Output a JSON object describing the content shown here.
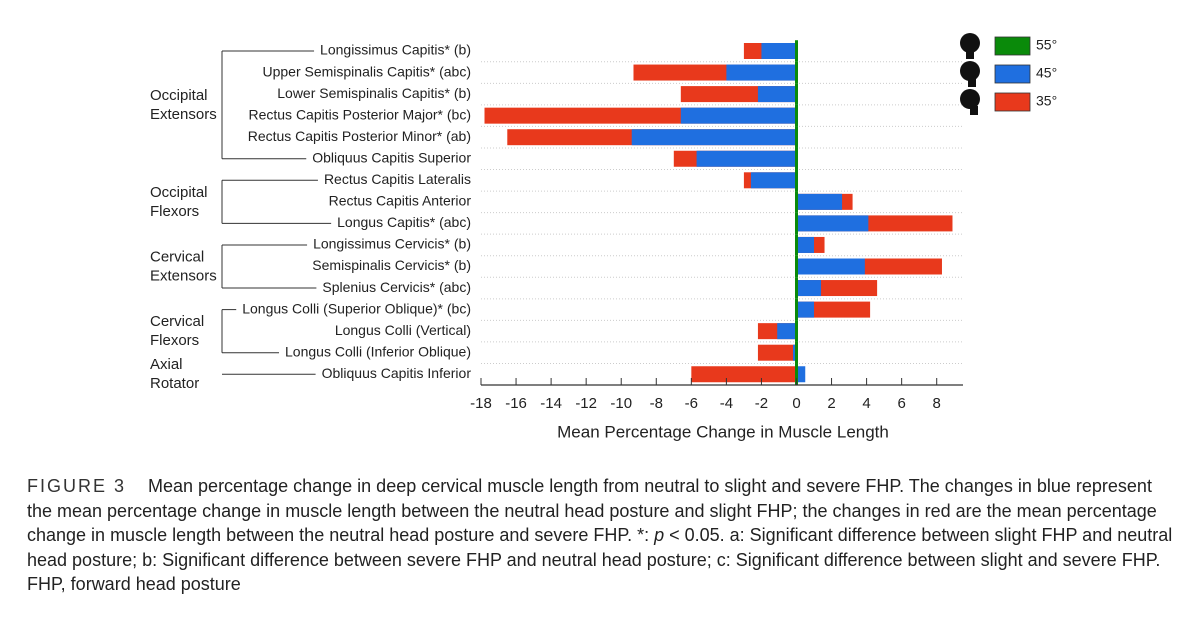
{
  "chart_data": {
    "type": "bar",
    "orientation": "horizontal",
    "x_label": "Mean Percentage Change in Muscle Length",
    "categories": [
      "Longissimus Capitis* (b)",
      "Upper Semispinalis Capitis* (abc)",
      "Lower Semispinalis Capitis* (b)",
      "Rectus Capitis Posterior Major* (bc)",
      "Rectus Capitis Posterior Minor* (ab)",
      "Obliquus Capitis Superior",
      "Rectus Capitis Lateralis",
      "Rectus Capitis Anterior",
      "Longus Capitis* (abc)",
      "Longissimus Cervicis* (b)",
      "Semispinalis Cervicis* (b)",
      "Splenius Cervicis* (abc)",
      "Longus Colli (Superior Oblique)* (bc)",
      "Longus Colli (Vertical)",
      "Longus Colli (Inferior Oblique)",
      "Obliquus Capitis Inferior"
    ],
    "groups": [
      {
        "label": [
          "Occipital",
          "Extensors"
        ],
        "rows": [
          0,
          5
        ]
      },
      {
        "label": [
          "Occipital",
          "Flexors"
        ],
        "rows": [
          6,
          8
        ]
      },
      {
        "label": [
          "Cervical",
          "Extensors"
        ],
        "rows": [
          9,
          11
        ]
      },
      {
        "label": [
          "Cervical",
          "Flexors"
        ],
        "rows": [
          12,
          14
        ]
      },
      {
        "label": [
          "Axial",
          "Rotator"
        ],
        "rows": [
          15,
          15
        ]
      }
    ],
    "series": [
      {
        "name": "55°",
        "color": "#0a8a0a",
        "values": [
          0,
          0,
          0,
          0,
          0,
          0,
          0,
          0,
          0,
          0,
          0,
          0,
          0,
          0,
          0,
          0
        ]
      },
      {
        "name": "45°",
        "color": "#1f6fe0",
        "values": [
          -2.0,
          -4.0,
          -2.2,
          -6.6,
          -9.4,
          -5.7,
          -2.6,
          2.6,
          4.1,
          1.0,
          3.9,
          1.4,
          1.0,
          -1.1,
          -0.2,
          0.5
        ]
      },
      {
        "name": "35°",
        "color": "#e8391c",
        "values": [
          -3.0,
          -9.3,
          -6.6,
          -17.8,
          -16.5,
          -7.0,
          -3.0,
          3.2,
          8.9,
          1.6,
          8.3,
          4.6,
          4.2,
          -2.2,
          -2.2,
          -6.0
        ]
      }
    ],
    "xlim": [
      -18,
      9.5
    ],
    "xticks": [
      -18,
      -16,
      -14,
      -12,
      -10,
      -8,
      -6,
      -4,
      -2,
      0,
      2,
      4,
      6,
      8
    ],
    "legend": "top-right"
  },
  "caption": {
    "label": "FIGURE 3",
    "text": [
      "Mean percentage change in deep cervical muscle length from neutral to slight and severe FHP. The changes in blue represent the mean percentage change in muscle length between the neutral head posture and slight FHP; the changes in red are the mean percentage change in muscle length between the neutral head posture and severe FHP. *: ",
      "p",
      " < 0.05. a: Significant difference between slight FHP and neutral head posture; b: Significant difference between severe FHP and neutral head posture; c: Significant difference between slight and severe FHP. FHP, forward head posture"
    ]
  }
}
